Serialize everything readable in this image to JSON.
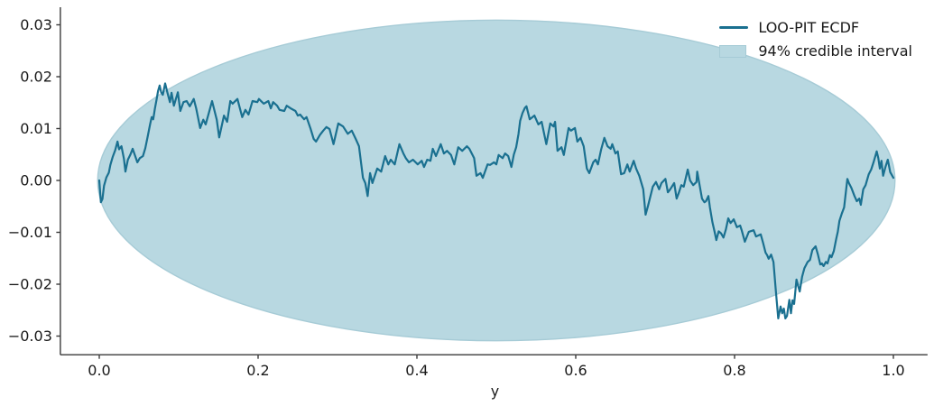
{
  "figure": {
    "background": "#ffffff",
    "axis_color": "#3a3a3a",
    "text_color": "#1a1a1a"
  },
  "legend": {
    "position": "upper right",
    "items": [
      {
        "label": "LOO-PIT ECDF",
        "type": "line",
        "color": "#1a7090"
      },
      {
        "label": "94% credible interval",
        "type": "patch",
        "color": "#b8d8e1",
        "edge": "#a6cbd6"
      }
    ]
  },
  "chart_data": {
    "type": "line",
    "title": "",
    "xlabel": "y",
    "ylabel": "",
    "grid": false,
    "legend_position": "upper right",
    "xlim": [
      -0.049,
      1.043
    ],
    "ylim": [
      -0.0336,
      0.0334
    ],
    "x_ticks": [
      {
        "value": 0.0,
        "label": "0.0"
      },
      {
        "value": 0.2,
        "label": "0.2"
      },
      {
        "value": 0.4,
        "label": "0.4"
      },
      {
        "value": 0.6,
        "label": "0.6"
      },
      {
        "value": 0.8,
        "label": "0.8"
      },
      {
        "value": 1.0,
        "label": "1.0"
      }
    ],
    "y_ticks": [
      {
        "value": 0.03,
        "label": "0.03"
      },
      {
        "value": 0.02,
        "label": "0.02"
      },
      {
        "value": 0.01,
        "label": "0.01"
      },
      {
        "value": 0.0,
        "label": "0.00"
      },
      {
        "value": -0.01,
        "label": "−0.01"
      },
      {
        "value": -0.02,
        "label": "−0.02"
      },
      {
        "value": -0.03,
        "label": "−0.03"
      }
    ],
    "band": {
      "name": "94% credible interval",
      "shape": "ellipse",
      "center": [
        0.5,
        0.0
      ],
      "rx": 0.502,
      "ry": 0.0309,
      "color": "#b8d8e1",
      "edge": "#a6cbd6"
    },
    "series": [
      {
        "name": "LOO-PIT ECDF",
        "color": "#1a7090",
        "width": 2.2,
        "points": [
          [
            0,
            0
          ],
          [
            0.002,
            -0.0042
          ],
          [
            0.004,
            -0.0036
          ],
          [
            0.006,
            -0.001
          ],
          [
            0.009,
            0.0006
          ],
          [
            0.012,
            0.0015
          ],
          [
            0.014,
            0.003
          ],
          [
            0.017,
            0.0046
          ],
          [
            0.02,
            0.0058
          ],
          [
            0.023,
            0.0075
          ],
          [
            0.025,
            0.006
          ],
          [
            0.028,
            0.0066
          ],
          [
            0.031,
            0.0042
          ],
          [
            0.033,
            0.0017
          ],
          [
            0.036,
            0.004
          ],
          [
            0.039,
            0.0049
          ],
          [
            0.042,
            0.0061
          ],
          [
            0.045,
            0.0048
          ],
          [
            0.048,
            0.0035
          ],
          [
            0.051,
            0.0043
          ],
          [
            0.055,
            0.0047
          ],
          [
            0.058,
            0.0062
          ],
          [
            0.061,
            0.0085
          ],
          [
            0.064,
            0.0108
          ],
          [
            0.066,
            0.0122
          ],
          [
            0.068,
            0.0118
          ],
          [
            0.07,
            0.0138
          ],
          [
            0.072,
            0.0155
          ],
          [
            0.074,
            0.0172
          ],
          [
            0.076,
            0.0183
          ],
          [
            0.078,
            0.017
          ],
          [
            0.08,
            0.0165
          ],
          [
            0.083,
            0.0187
          ],
          [
            0.086,
            0.0168
          ],
          [
            0.089,
            0.0151
          ],
          [
            0.091,
            0.0169
          ],
          [
            0.094,
            0.0144
          ],
          [
            0.097,
            0.016
          ],
          [
            0.099,
            0.017
          ],
          [
            0.102,
            0.0134
          ],
          [
            0.106,
            0.0151
          ],
          [
            0.11,
            0.0153
          ],
          [
            0.114,
            0.0143
          ],
          [
            0.119,
            0.0157
          ],
          [
            0.122,
            0.0139
          ],
          [
            0.127,
            0.0101
          ],
          [
            0.131,
            0.0117
          ],
          [
            0.134,
            0.0108
          ],
          [
            0.138,
            0.013
          ],
          [
            0.142,
            0.0153
          ],
          [
            0.148,
            0.0117
          ],
          [
            0.151,
            0.0083
          ],
          [
            0.157,
            0.0125
          ],
          [
            0.161,
            0.0113
          ],
          [
            0.165,
            0.0153
          ],
          [
            0.168,
            0.0148
          ],
          [
            0.174,
            0.0157
          ],
          [
            0.18,
            0.0122
          ],
          [
            0.184,
            0.0136
          ],
          [
            0.188,
            0.0127
          ],
          [
            0.193,
            0.0153
          ],
          [
            0.199,
            0.0151
          ],
          [
            0.201,
            0.0157
          ],
          [
            0.207,
            0.0148
          ],
          [
            0.213,
            0.0153
          ],
          [
            0.216,
            0.0139
          ],
          [
            0.219,
            0.0151
          ],
          [
            0.224,
            0.0144
          ],
          [
            0.227,
            0.0136
          ],
          [
            0.233,
            0.0134
          ],
          [
            0.236,
            0.0144
          ],
          [
            0.241,
            0.0139
          ],
          [
            0.247,
            0.0134
          ],
          [
            0.25,
            0.0125
          ],
          [
            0.253,
            0.0127
          ],
          [
            0.258,
            0.0118
          ],
          [
            0.261,
            0.0122
          ],
          [
            0.266,
            0.01
          ],
          [
            0.27,
            0.008
          ],
          [
            0.273,
            0.0075
          ],
          [
            0.278,
            0.0088
          ],
          [
            0.282,
            0.0096
          ],
          [
            0.286,
            0.0103
          ],
          [
            0.29,
            0.0099
          ],
          [
            0.295,
            0.007
          ],
          [
            0.301,
            0.011
          ],
          [
            0.307,
            0.0104
          ],
          [
            0.313,
            0.009
          ],
          [
            0.318,
            0.0096
          ],
          [
            0.323,
            0.008
          ],
          [
            0.327,
            0.0066
          ],
          [
            0.33,
            0.003
          ],
          [
            0.332,
            0.0005
          ],
          [
            0.335,
            -0.0005
          ],
          [
            0.338,
            -0.003
          ],
          [
            0.341,
            0.0014
          ],
          [
            0.344,
            -0.0005
          ],
          [
            0.35,
            0.0023
          ],
          [
            0.355,
            0.0017
          ],
          [
            0.36,
            0.0047
          ],
          [
            0.364,
            0.0031
          ],
          [
            0.367,
            0.004
          ],
          [
            0.372,
            0.0031
          ],
          [
            0.378,
            0.007
          ],
          [
            0.383,
            0.0052
          ],
          [
            0.386,
            0.0043
          ],
          [
            0.39,
            0.0035
          ],
          [
            0.395,
            0.004
          ],
          [
            0.401,
            0.0031
          ],
          [
            0.406,
            0.0038
          ],
          [
            0.409,
            0.0026
          ],
          [
            0.413,
            0.004
          ],
          [
            0.417,
            0.0038
          ],
          [
            0.42,
            0.0061
          ],
          [
            0.424,
            0.0047
          ],
          [
            0.43,
            0.007
          ],
          [
            0.434,
            0.0052
          ],
          [
            0.438,
            0.0057
          ],
          [
            0.443,
            0.0049
          ],
          [
            0.447,
            0.0031
          ],
          [
            0.452,
            0.0064
          ],
          [
            0.457,
            0.0057
          ],
          [
            0.463,
            0.0066
          ],
          [
            0.466,
            0.0061
          ],
          [
            0.472,
            0.0043
          ],
          [
            0.475,
            0.0009
          ],
          [
            0.48,
            0.0014
          ],
          [
            0.483,
            0.0005
          ],
          [
            0.489,
            0.0031
          ],
          [
            0.492,
            0.003
          ],
          [
            0.497,
            0.0035
          ],
          [
            0.5,
            0.0031
          ],
          [
            0.503,
            0.0049
          ],
          [
            0.508,
            0.0043
          ],
          [
            0.511,
            0.0052
          ],
          [
            0.515,
            0.0047
          ],
          [
            0.519,
            0.0026
          ],
          [
            0.522,
            0.005
          ],
          [
            0.525,
            0.0064
          ],
          [
            0.528,
            0.009
          ],
          [
            0.53,
            0.0115
          ],
          [
            0.533,
            0.013
          ],
          [
            0.536,
            0.014
          ],
          [
            0.538,
            0.0143
          ],
          [
            0.542,
            0.0118
          ],
          [
            0.548,
            0.0125
          ],
          [
            0.553,
            0.0108
          ],
          [
            0.557,
            0.0113
          ],
          [
            0.563,
            0.007
          ],
          [
            0.568,
            0.011
          ],
          [
            0.572,
            0.0104
          ],
          [
            0.574,
            0.0113
          ],
          [
            0.577,
            0.0057
          ],
          [
            0.582,
            0.0064
          ],
          [
            0.585,
            0.0049
          ],
          [
            0.591,
            0.0101
          ],
          [
            0.594,
            0.0096
          ],
          [
            0.599,
            0.0101
          ],
          [
            0.602,
            0.0075
          ],
          [
            0.606,
            0.0082
          ],
          [
            0.61,
            0.0066
          ],
          [
            0.614,
            0.0023
          ],
          [
            0.617,
            0.0014
          ],
          [
            0.622,
            0.0035
          ],
          [
            0.625,
            0.004
          ],
          [
            0.628,
            0.0031
          ],
          [
            0.632,
            0.006
          ],
          [
            0.636,
            0.0082
          ],
          [
            0.64,
            0.0066
          ],
          [
            0.644,
            0.0061
          ],
          [
            0.646,
            0.007
          ],
          [
            0.65,
            0.0052
          ],
          [
            0.653,
            0.0056
          ],
          [
            0.657,
            0.0012
          ],
          [
            0.661,
            0.0014
          ],
          [
            0.665,
            0.0031
          ],
          [
            0.668,
            0.0017
          ],
          [
            0.673,
            0.0038
          ],
          [
            0.676,
            0.0023
          ],
          [
            0.68,
            0.0009
          ],
          [
            0.685,
            -0.0017
          ],
          [
            0.688,
            -0.0066
          ],
          [
            0.691,
            -0.0049
          ],
          [
            0.697,
            -0.0012
          ],
          [
            0.701,
            -0.0003
          ],
          [
            0.705,
            -0.0017
          ],
          [
            0.708,
            -0.0005
          ],
          [
            0.713,
            0.0003
          ],
          [
            0.716,
            -0.0023
          ],
          [
            0.719,
            -0.0017
          ],
          [
            0.724,
            -0.0005
          ],
          [
            0.727,
            -0.0035
          ],
          [
            0.73,
            -0.0023
          ],
          [
            0.733,
            -0.0009
          ],
          [
            0.736,
            -0.0012
          ],
          [
            0.741,
            0.0021
          ],
          [
            0.744,
            0
          ],
          [
            0.748,
            -0.0009
          ],
          [
            0.752,
            -0.0003
          ],
          [
            0.753,
            0.0017
          ],
          [
            0.759,
            -0.0035
          ],
          [
            0.762,
            -0.0042
          ],
          [
            0.764,
            -0.004
          ],
          [
            0.767,
            -0.003
          ],
          [
            0.769,
            -0.0052
          ],
          [
            0.772,
            -0.008
          ],
          [
            0.775,
            -0.01
          ],
          [
            0.777,
            -0.0115
          ],
          [
            0.78,
            -0.0098
          ],
          [
            0.783,
            -0.0102
          ],
          [
            0.786,
            -0.011
          ],
          [
            0.789,
            -0.0095
          ],
          [
            0.792,
            -0.0073
          ],
          [
            0.795,
            -0.0082
          ],
          [
            0.799,
            -0.0075
          ],
          [
            0.803,
            -0.009
          ],
          [
            0.807,
            -0.0087
          ],
          [
            0.809,
            -0.0096
          ],
          [
            0.813,
            -0.0118
          ],
          [
            0.818,
            -0.0099
          ],
          [
            0.824,
            -0.0096
          ],
          [
            0.827,
            -0.0108
          ],
          [
            0.833,
            -0.0104
          ],
          [
            0.836,
            -0.0121
          ],
          [
            0.839,
            -0.0139
          ],
          [
            0.841,
            -0.0144
          ],
          [
            0.843,
            -0.0151
          ],
          [
            0.846,
            -0.0143
          ],
          [
            0.849,
            -0.0157
          ],
          [
            0.852,
            -0.0214
          ],
          [
            0.855,
            -0.0266
          ],
          [
            0.858,
            -0.0243
          ],
          [
            0.86,
            -0.0256
          ],
          [
            0.862,
            -0.0247
          ],
          [
            0.864,
            -0.0266
          ],
          [
            0.866,
            -0.0261
          ],
          [
            0.869,
            -0.023
          ],
          [
            0.871,
            -0.0256
          ],
          [
            0.873,
            -0.0231
          ],
          [
            0.875,
            -0.0238
          ],
          [
            0.878,
            -0.0191
          ],
          [
            0.88,
            -0.0203
          ],
          [
            0.882,
            -0.0214
          ],
          [
            0.885,
            -0.0186
          ],
          [
            0.888,
            -0.0169
          ],
          [
            0.892,
            -0.0157
          ],
          [
            0.895,
            -0.0153
          ],
          [
            0.898,
            -0.0134
          ],
          [
            0.902,
            -0.0127
          ],
          [
            0.905,
            -0.0143
          ],
          [
            0.908,
            -0.0162
          ],
          [
            0.91,
            -0.016
          ],
          [
            0.912,
            -0.0165
          ],
          [
            0.915,
            -0.0157
          ],
          [
            0.917,
            -0.016
          ],
          [
            0.92,
            -0.0144
          ],
          [
            0.922,
            -0.0148
          ],
          [
            0.925,
            -0.0136
          ],
          [
            0.928,
            -0.0113
          ],
          [
            0.93,
            -0.0099
          ],
          [
            0.932,
            -0.0078
          ],
          [
            0.935,
            -0.0064
          ],
          [
            0.938,
            -0.0052
          ],
          [
            0.942,
            0.0003
          ],
          [
            0.944,
            -0.0005
          ],
          [
            0.947,
            -0.0014
          ],
          [
            0.951,
            -0.003
          ],
          [
            0.954,
            -0.004
          ],
          [
            0.957,
            -0.0035
          ],
          [
            0.959,
            -0.0047
          ],
          [
            0.962,
            -0.0017
          ],
          [
            0.965,
            -0.0009
          ],
          [
            0.969,
            0.0012
          ],
          [
            0.972,
            0.0021
          ],
          [
            0.975,
            0.0035
          ],
          [
            0.979,
            0.0056
          ],
          [
            0.981,
            0.0043
          ],
          [
            0.983,
            0.0023
          ],
          [
            0.985,
            0.0038
          ],
          [
            0.987,
            0.0009
          ],
          [
            0.99,
            0.0026
          ],
          [
            0.993,
            0.004
          ],
          [
            0.996,
            0.0016
          ],
          [
            1,
            0.0005
          ]
        ]
      }
    ]
  }
}
